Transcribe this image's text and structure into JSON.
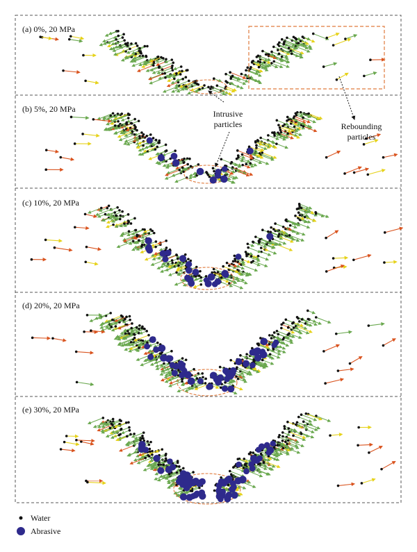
{
  "figure": {
    "panels": [
      {
        "id": "a",
        "label": "(a)  0%, 20 MPa",
        "abrasive_pct": 0
      },
      {
        "id": "b",
        "label": "(b)  5%, 20 MPa",
        "abrasive_pct": 5
      },
      {
        "id": "c",
        "label": "(c)  10%, 20 MPa",
        "abrasive_pct": 10
      },
      {
        "id": "d",
        "label": "(d)  20%, 20 MPa",
        "abrasive_pct": 20
      },
      {
        "id": "e",
        "label": "(e)  30%, 20 MPa",
        "abrasive_pct": 30
      }
    ],
    "annotations": {
      "intrusive": [
        "Intrusive",
        "particles"
      ],
      "rebounding": [
        "Rebounding",
        "particles"
      ]
    },
    "legend": {
      "water": "Water",
      "abrasive": "Abrasive"
    },
    "colors": {
      "water": "#111111",
      "abrasive": "#2e2a8c",
      "vector_slow": "#6aa84f",
      "vector_mid": "#e6d21a",
      "vector_fast": "#d9531e",
      "highlight": "#e07a3c",
      "frame": "#555555"
    }
  }
}
